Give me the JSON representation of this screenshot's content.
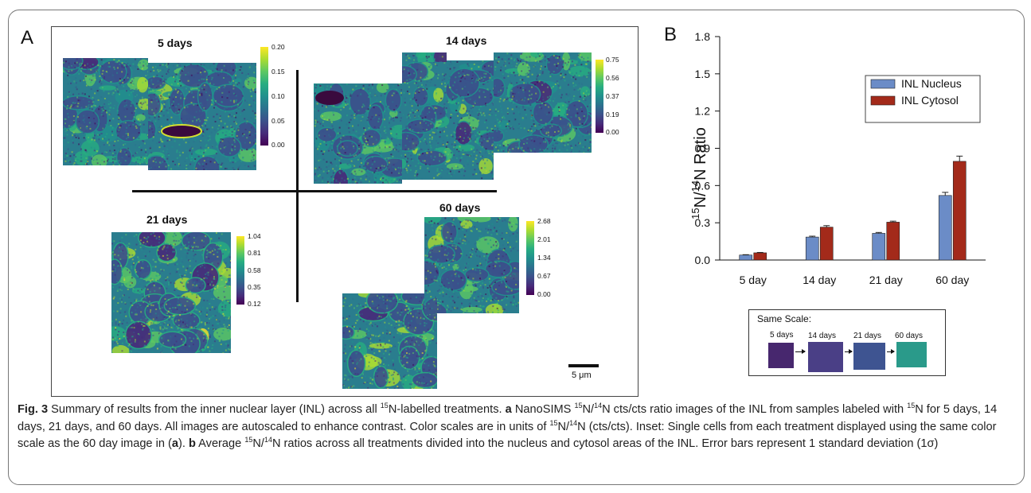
{
  "panel_a": {
    "letter": "A",
    "images": [
      {
        "label": "5 days",
        "colorbar": [
          "0.20",
          "0.15",
          "0.10",
          "0.05",
          "0.00"
        ]
      },
      {
        "label": "14 days",
        "colorbar": [
          "0.75",
          "0.56",
          "0.37",
          "0.19",
          "0.00"
        ]
      },
      {
        "label": "21 days",
        "colorbar": [
          "1.04",
          "0.81",
          "0.58",
          "0.35",
          "0.12"
        ]
      },
      {
        "label": "60 days",
        "colorbar": [
          "2.68",
          "2.01",
          "1.34",
          "0.67",
          "0.00"
        ]
      }
    ],
    "scale_bar": "5 μm"
  },
  "panel_b": {
    "letter": "B",
    "inset": {
      "title": "Same Scale:",
      "labels": [
        "5 days",
        "14 days",
        "21 days",
        "60 days"
      ]
    }
  },
  "chart_data": {
    "type": "bar",
    "title": "",
    "xlabel": "",
    "ylabel_parts": {
      "sup1": "15",
      "n1": "N/",
      "sup2": "14",
      "n2": "N Ratio"
    },
    "categories": [
      "5 day",
      "14 day",
      "21 day",
      "60 day"
    ],
    "series": [
      {
        "name": "INL Nucleus",
        "color": "#6b8cc7",
        "values": [
          0.04,
          0.185,
          0.215,
          0.52
        ],
        "errors": [
          0.003,
          0.007,
          0.007,
          0.025
        ]
      },
      {
        "name": "INL Cytosol",
        "color": "#a32a1a",
        "values": [
          0.058,
          0.265,
          0.305,
          0.795
        ],
        "errors": [
          0.003,
          0.012,
          0.008,
          0.042
        ]
      }
    ],
    "ylim": [
      0,
      1.8
    ],
    "yticks": [
      "0.0",
      "0.3",
      "0.6",
      "0.9",
      "1.2",
      "1.5",
      "1.8"
    ],
    "legend": "top-right",
    "grid": false
  },
  "caption": {
    "fig_label": "Fig. 3",
    "t1": " Summary of results from the inner nuclear layer (INL) across all ",
    "s1": "15",
    "t2": "N-labelled treatments. ",
    "a": "a",
    "t3": " NanoSIMS ",
    "s2": "15",
    "t4": "N/",
    "s3": "14",
    "t5": "N cts/cts ratio images of the INL from samples labeled with ",
    "s4": "15",
    "t6": "N for 5 days, 14 days, 21 days, and 60 days. All images are autoscaled to enhance contrast. Color scales are in units of ",
    "s5": "15",
    "t7": "N/",
    "s6": "14",
    "t8": "N (cts/cts). Inset: Single cells from each treatment displayed using the same color scale as the 60 day image in (",
    "a2": "a",
    "t9": "). ",
    "b": "b",
    "t10": " Average ",
    "s7": "15",
    "t11": "N/",
    "s8": "14",
    "t12": "N ratios across all treatments divided into the nucleus and cytosol areas of the INL. Error bars represent 1 standard deviation (1σ)"
  }
}
